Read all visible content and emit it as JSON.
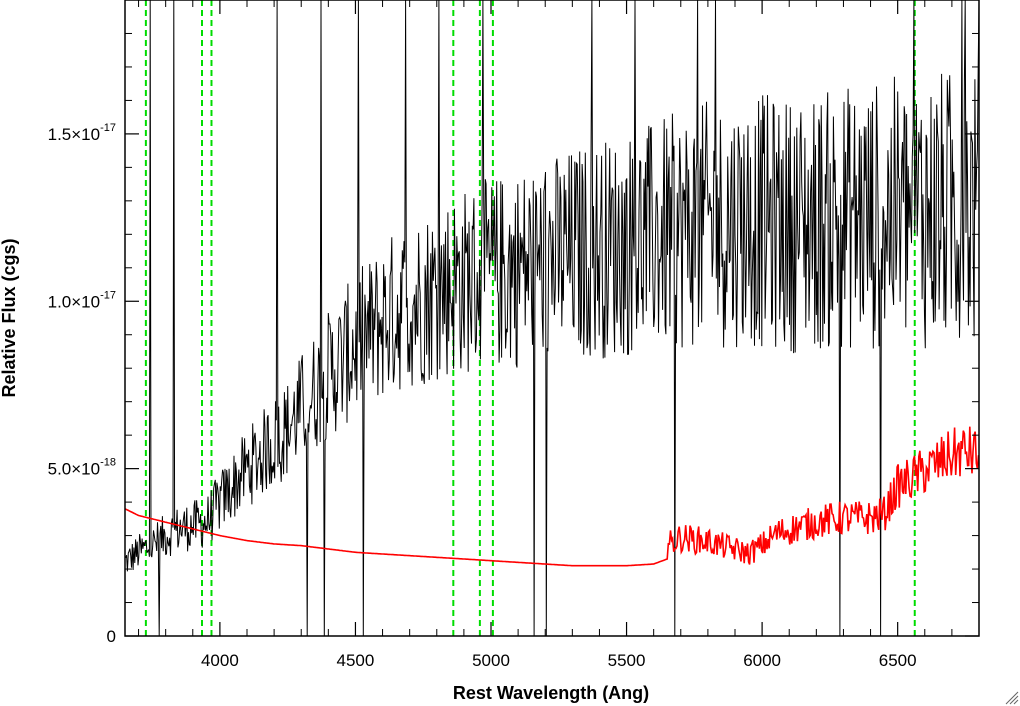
{
  "chart_data": {
    "type": "line",
    "title": "",
    "xlabel": "Rest Wavelength (Ang)",
    "ylabel": "Relative Flux (cgs)",
    "xlim": [
      3650,
      6800
    ],
    "ylim": [
      0,
      1.9e-17
    ],
    "x_ticks": [
      {
        "value": 4000,
        "label": "4000"
      },
      {
        "value": 4500,
        "label": "4500"
      },
      {
        "value": 5000,
        "label": "5000"
      },
      {
        "value": 5500,
        "label": "5500"
      },
      {
        "value": 6000,
        "label": "6000"
      },
      {
        "value": 6500,
        "label": "6500"
      }
    ],
    "y_ticks": [
      {
        "value": 0,
        "mantissa": "0",
        "exponent": ""
      },
      {
        "value": 5e-18,
        "mantissa": "5.0×10",
        "exponent": "-18"
      },
      {
        "value": 1e-17,
        "mantissa": "1.0×10",
        "exponent": "-17"
      },
      {
        "value": 1.5e-17,
        "mantissa": "1.5×10",
        "exponent": "-17"
      }
    ],
    "grid": false,
    "reference_lines": {
      "color": "#00dd00",
      "style": "dashed",
      "x": [
        3727,
        3934,
        3969,
        4861,
        4959,
        5007,
        6563
      ]
    },
    "series": [
      {
        "color": "#000000",
        "style": "noisy-line",
        "x": [
          3650,
          3700,
          3750,
          3800,
          3850,
          3900,
          3950,
          4000,
          4050,
          4100,
          4150,
          4200,
          4250,
          4300,
          4350,
          4400,
          4450,
          4500,
          4550,
          4600,
          4650,
          4700,
          4750,
          4800,
          4850,
          4900,
          4950,
          5000,
          5050,
          5100,
          5150,
          5200,
          5250,
          5300,
          5350,
          5400,
          5450,
          5500,
          5550,
          5600,
          5650,
          5700,
          5750,
          5800,
          5850,
          5900,
          5950,
          6000,
          6050,
          6100,
          6150,
          6200,
          6250,
          6300,
          6350,
          6400,
          6450,
          6500,
          6550,
          6600,
          6650,
          6700,
          6750,
          6800
        ],
        "y": [
          2.2e-18,
          2.5e-18,
          2.7e-18,
          3e-18,
          3.2e-18,
          3.3e-18,
          3.4e-18,
          4e-18,
          4.5e-18,
          5e-18,
          5.4e-18,
          5.8e-18,
          6.2e-18,
          6.8e-18,
          7.3e-18,
          7.8e-18,
          8.2e-18,
          8.7e-18,
          9e-18,
          9.4e-18,
          9.7e-18,
          9.9e-18,
          1.01e-17,
          1.03e-17,
          1.05e-17,
          1.06e-17,
          1.07e-17,
          1.08e-17,
          1.09e-17,
          1.1e-17,
          1.11e-17,
          1.12e-17,
          1.13e-17,
          1.14e-17,
          1.15e-17,
          1.16e-17,
          1.16e-17,
          1.17e-17,
          1.18e-17,
          1.19e-17,
          1.2e-17,
          1.21e-17,
          1.22e-17,
          1.23e-17,
          1.23e-17,
          1.24e-17,
          1.24e-17,
          1.24e-17,
          1.23e-17,
          1.23e-17,
          1.23e-17,
          1.24e-17,
          1.24e-17,
          1.25e-17,
          1.25e-17,
          1.25e-17,
          1.26e-17,
          1.26e-17,
          1.26e-17,
          1.27e-17,
          1.27e-17,
          1.27e-17,
          1.28e-17,
          1.28e-17
        ]
      },
      {
        "color": "#ff0000",
        "style": "line",
        "x": [
          3650,
          3700,
          3800,
          3900,
          4000,
          4100,
          4200,
          4300,
          4400,
          4500,
          4600,
          4700,
          4800,
          4900,
          5000,
          5100,
          5200,
          5300,
          5400,
          5500,
          5600,
          5650,
          5700,
          5800,
          5900,
          5950,
          6000,
          6050,
          6100,
          6200,
          6300,
          6400,
          6450,
          6500,
          6550,
          6600,
          6650,
          6700,
          6750,
          6800
        ],
        "y": [
          3.8e-18,
          3.6e-18,
          3.4e-18,
          3.2e-18,
          3e-18,
          2.85e-18,
          2.75e-18,
          2.7e-18,
          2.6e-18,
          2.5e-18,
          2.45e-18,
          2.4e-18,
          2.35e-18,
          2.3e-18,
          2.25e-18,
          2.2e-18,
          2.15e-18,
          2.1e-18,
          2.1e-18,
          2.1e-18,
          2.15e-18,
          2.3e-18,
          2.5e-18,
          2.4e-18,
          2.2e-18,
          2.1e-18,
          2.3e-18,
          2.6e-18,
          2.7e-18,
          2.9e-18,
          3e-18,
          3e-18,
          3.1e-18,
          3.8e-18,
          4e-18,
          4.2e-18,
          4.4e-18,
          4.6e-18,
          4.7e-18,
          4.6e-18
        ]
      }
    ]
  }
}
